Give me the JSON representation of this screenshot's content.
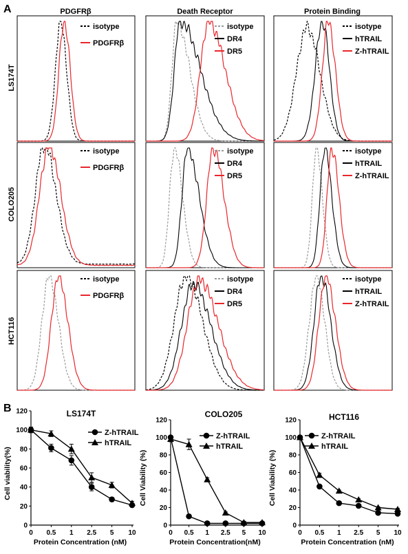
{
  "panel_labels": {
    "a": "A",
    "b": "B"
  },
  "panel_a": {
    "column_titles": [
      "PDGFRβ",
      "Death Receptor",
      "Protein Binding"
    ],
    "row_labels": [
      "LS174T",
      "COLO205",
      "HCT116"
    ],
    "legends": [
      [
        [
          "isotype",
          "PDGFRβ"
        ],
        [
          "isotype",
          "DR4",
          "DR5"
        ],
        [
          "isotype",
          "hTRAIL",
          "Z-hTRAIL"
        ]
      ],
      [
        [
          "isotype",
          "PDGFRβ"
        ],
        [
          "isotype",
          "DR4",
          "DR5"
        ],
        [
          "isotype",
          "hTRAIL",
          "Z-hTRAIL"
        ]
      ],
      [
        [
          "isotype",
          "PDGFRβ"
        ],
        [
          "isotype",
          "DR4",
          "DR5"
        ],
        [
          "isotype",
          "hTRAIL",
          "Z-hTRAIL"
        ]
      ]
    ],
    "legend_styles": [
      [
        "dash-black",
        "solid-red"
      ],
      [
        "dash-gray",
        "solid-black",
        "solid-red"
      ],
      [
        "dash-black",
        "solid-black",
        "solid-red"
      ]
    ],
    "colors": {
      "red": "#e8262b",
      "black": "#000000",
      "gray": "#9a9a9a"
    }
  },
  "chart_data": [
    {
      "type": "line",
      "title": "LS174T",
      "xlabel": "Protein Concentration (nM)",
      "ylabel": "Cell viability(%)",
      "categories": [
        "0",
        "0.5",
        "1",
        "2.5",
        "5",
        "10"
      ],
      "ylim": [
        0,
        120
      ],
      "yticks": [
        0,
        20,
        40,
        60,
        80,
        100,
        120
      ],
      "series": [
        {
          "name": "Z-hTRAIL",
          "marker": "circle",
          "values": [
            100,
            81,
            68,
            40,
            27,
            21
          ],
          "errors": [
            3,
            4,
            5,
            4,
            2,
            2
          ]
        },
        {
          "name": "hTRAIL",
          "marker": "triangle",
          "values": [
            100,
            96,
            80,
            50,
            42,
            23
          ],
          "errors": [
            2,
            3,
            5,
            5,
            3,
            2
          ]
        }
      ]
    },
    {
      "type": "line",
      "title": "COLO205",
      "xlabel": "Protein Concentration(nM)",
      "ylabel": "Cell Viability (%)",
      "categories": [
        "0",
        "0.5",
        "1",
        "2.5",
        "5",
        "10"
      ],
      "ylim": [
        0,
        120
      ],
      "yticks": [
        0,
        20,
        40,
        60,
        80,
        100,
        120
      ],
      "series": [
        {
          "name": "Z-hTRAIL",
          "marker": "circle",
          "values": [
            100,
            10,
            2,
            2,
            2,
            2
          ],
          "errors": [
            2,
            1,
            0,
            0,
            0,
            0
          ]
        },
        {
          "name": "hTRAIL",
          "marker": "triangle",
          "values": [
            98,
            92,
            52,
            14,
            3,
            3
          ],
          "errors": [
            3,
            6,
            2,
            1,
            0,
            0
          ]
        }
      ]
    },
    {
      "type": "line",
      "title": "HCT116",
      "xlabel": "Protein Concentration (nM)",
      "ylabel": "Cell Viability (%)",
      "categories": [
        "0",
        "0.5",
        "1",
        "2.5",
        "5",
        "10"
      ],
      "ylim": [
        0,
        120
      ],
      "yticks": [
        0,
        20,
        40,
        60,
        80,
        100,
        120
      ],
      "series": [
        {
          "name": "Z-hTRAIL",
          "marker": "circle",
          "values": [
            100,
            44,
            25,
            22,
            14,
            13
          ],
          "errors": [
            0,
            2,
            1,
            1,
            1,
            1
          ]
        },
        {
          "name": "hTRAIL",
          "marker": "triangle",
          "values": [
            100,
            57,
            39,
            29,
            20,
            18
          ],
          "errors": [
            0,
            2,
            1,
            1,
            1,
            1
          ]
        }
      ]
    }
  ]
}
